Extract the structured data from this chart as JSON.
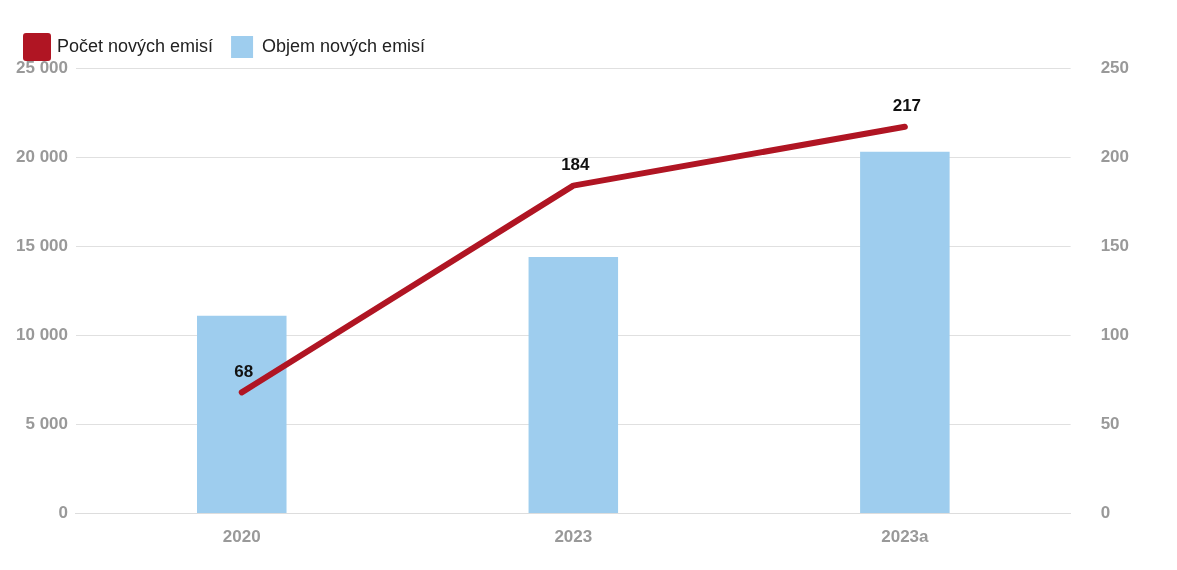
{
  "chart_data": {
    "type": "bar",
    "categories": [
      "2020",
      "2023",
      "2023a"
    ],
    "series": [
      {
        "name": "Objem nových emisí",
        "color": "#9ecdee",
        "values": [
          11100,
          14400,
          20300
        ]
      },
      {
        "name": "Počet nových emisí",
        "type": "line",
        "axis": "y2",
        "color": "#b01523",
        "values": [
          68,
          184,
          217
        ],
        "value_labels": [
          "68",
          "184",
          "217"
        ]
      }
    ],
    "ylim": [
      0,
      25000
    ],
    "yticks": [
      {
        "value": 0,
        "label": "0"
      },
      {
        "value": 5000,
        "label": "5 000"
      },
      {
        "value": 10000,
        "label": "10 000"
      },
      {
        "value": 15000,
        "label": "15 000"
      },
      {
        "value": 20000,
        "label": "20 000"
      },
      {
        "value": 25000,
        "label": "25 000"
      }
    ],
    "y2lim": [
      0,
      250
    ],
    "y2ticks": [
      0,
      50,
      100,
      150,
      200,
      250
    ],
    "grid": "y",
    "legend": "top left",
    "marker": "none"
  }
}
